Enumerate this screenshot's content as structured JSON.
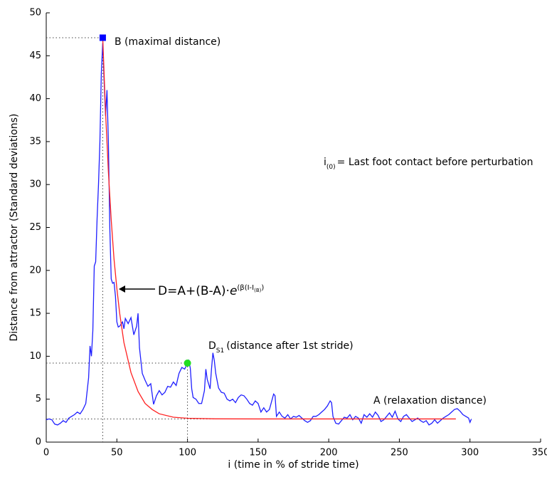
{
  "chart_data": {
    "type": "line",
    "xlabel": "i (time in % of stride time)",
    "ylabel": "Distance from attractor (Standard deviations)",
    "xlim": [
      0,
      350
    ],
    "xticks": [
      0,
      50,
      100,
      150,
      200,
      250,
      300,
      350
    ],
    "ylim": [
      0,
      50
    ],
    "yticks": [
      0,
      5,
      10,
      15,
      20,
      25,
      30,
      35,
      40,
      45,
      50
    ],
    "series": [
      {
        "color": "#1f1fff",
        "x": [
          0,
          2,
          4,
          6,
          8,
          10,
          12,
          14,
          16,
          18,
          20,
          22,
          24,
          26,
          28,
          30,
          31,
          32,
          33,
          34,
          35,
          36,
          37,
          38,
          39,
          40,
          41,
          42,
          43,
          44,
          45,
          46,
          47,
          48,
          49,
          50,
          51,
          52,
          54,
          55,
          56,
          58,
          60,
          62,
          64,
          65,
          66,
          68,
          70,
          72,
          74,
          76,
          78,
          80,
          82,
          84,
          86,
          88,
          90,
          92,
          94,
          96,
          98,
          100,
          101,
          102,
          103,
          104,
          106,
          108,
          110,
          112,
          113,
          114,
          116,
          117,
          118,
          119,
          120,
          122,
          124,
          126,
          128,
          130,
          132,
          134,
          136,
          138,
          140,
          142,
          144,
          146,
          148,
          150,
          152,
          154,
          156,
          158,
          160,
          161,
          162,
          163,
          165,
          167,
          169,
          171,
          173,
          175,
          177,
          179,
          181,
          183,
          185,
          187,
          189,
          191,
          193,
          195,
          197,
          199,
          201,
          202,
          203,
          205,
          207,
          209,
          211,
          213,
          215,
          217,
          219,
          221,
          223,
          225,
          227,
          229,
          231,
          233,
          235,
          237,
          239,
          241,
          243,
          245,
          247,
          249,
          251,
          253,
          255,
          257,
          259,
          261,
          263,
          265,
          267,
          269,
          271,
          273,
          275,
          277,
          279,
          281,
          283,
          285,
          287,
          289,
          291,
          293,
          295,
          297,
          299,
          300,
          301
        ],
        "values": [
          2.6,
          2.7,
          2.6,
          2.1,
          2.0,
          2.2,
          2.5,
          2.3,
          2.8,
          3.0,
          3.2,
          3.5,
          3.3,
          3.8,
          4.5,
          7.5,
          11.2,
          10.0,
          13,
          20.5,
          21,
          26,
          30,
          35,
          43,
          46.5,
          42,
          38,
          41,
          35,
          25,
          19,
          18.5,
          18.6,
          17,
          14,
          13.4,
          13.5,
          14,
          13.2,
          14.4,
          13.8,
          14.5,
          12.5,
          13.5,
          15,
          11,
          8,
          7.2,
          6.5,
          6.8,
          4.4,
          5.4,
          6,
          5.5,
          5.8,
          6.5,
          6.4,
          7,
          6.6,
          8,
          8.7,
          8.5,
          9.2,
          9.5,
          8.6,
          6.2,
          5.2,
          5,
          4.5,
          4.5,
          6,
          8.5,
          7.3,
          6.2,
          8.5,
          10.4,
          9.5,
          8,
          6.3,
          5.8,
          5.7,
          5,
          4.8,
          5,
          4.6,
          5.2,
          5.5,
          5.4,
          5,
          4.5,
          4.3,
          4.8,
          4.5,
          3.5,
          4,
          3.5,
          3.8,
          5,
          5.6,
          5.4,
          3,
          3.5,
          3,
          2.8,
          3.2,
          2.7,
          3,
          2.9,
          3.1,
          2.8,
          2.5,
          2.3,
          2.5,
          3,
          3,
          3.2,
          3.5,
          3.8,
          4.2,
          4.8,
          4.6,
          3,
          2.2,
          2.1,
          2.5,
          2.9,
          2.8,
          3.2,
          2.6,
          3,
          2.8,
          2.2,
          3.2,
          2.9,
          3.3,
          2.9,
          3.5,
          3.1,
          2.4,
          2.6,
          3,
          3.4,
          2.9,
          3.6,
          2.7,
          2.4,
          3,
          3.2,
          2.8,
          2.4,
          2.6,
          2.8,
          2.5,
          2.3,
          2.5,
          2.0,
          2.2,
          2.6,
          2.2,
          2.5,
          2.8,
          3.0,
          3.2,
          3.5,
          3.8,
          3.9,
          3.6,
          3.2,
          3.0,
          2.8,
          2.3,
          2.7
        ]
      },
      {
        "color": "#ff2020",
        "x": [
          40,
          42,
          44,
          46,
          48,
          50,
          52,
          55,
          60,
          65,
          70,
          75,
          80,
          90,
          100,
          120,
          150,
          200,
          250,
          290
        ],
        "values": [
          47.1,
          38.4,
          31.5,
          25.9,
          21.3,
          17.9,
          15,
          11.6,
          8.1,
          5.9,
          4.5,
          3.8,
          3.3,
          2.9,
          2.78,
          2.71,
          2.7,
          2.7,
          2.7,
          2.7
        ]
      }
    ],
    "markers": [
      {
        "x": 40,
        "y": 47.1,
        "color": "#0000ff",
        "shape": "square"
      },
      {
        "x": 100,
        "y": 9.2,
        "color": "#22dd22",
        "shape": "circle"
      }
    ],
    "reference_lines": [
      {
        "y": 2.7,
        "xlim": [
          0,
          290
        ]
      }
    ],
    "annotations": {
      "b": "B (maximal distance)",
      "i0": [
        "i",
        "(0)",
        "= Last foot contact before perturbation"
      ],
      "formula": [
        "D=A+(B-A)·",
        "e",
        "(β(I-I",
        "(B)",
        ")"
      ],
      "ds1": [
        "D",
        "S1",
        "(distance after 1st stride)"
      ],
      "a": "A (relaxation distance)"
    }
  }
}
